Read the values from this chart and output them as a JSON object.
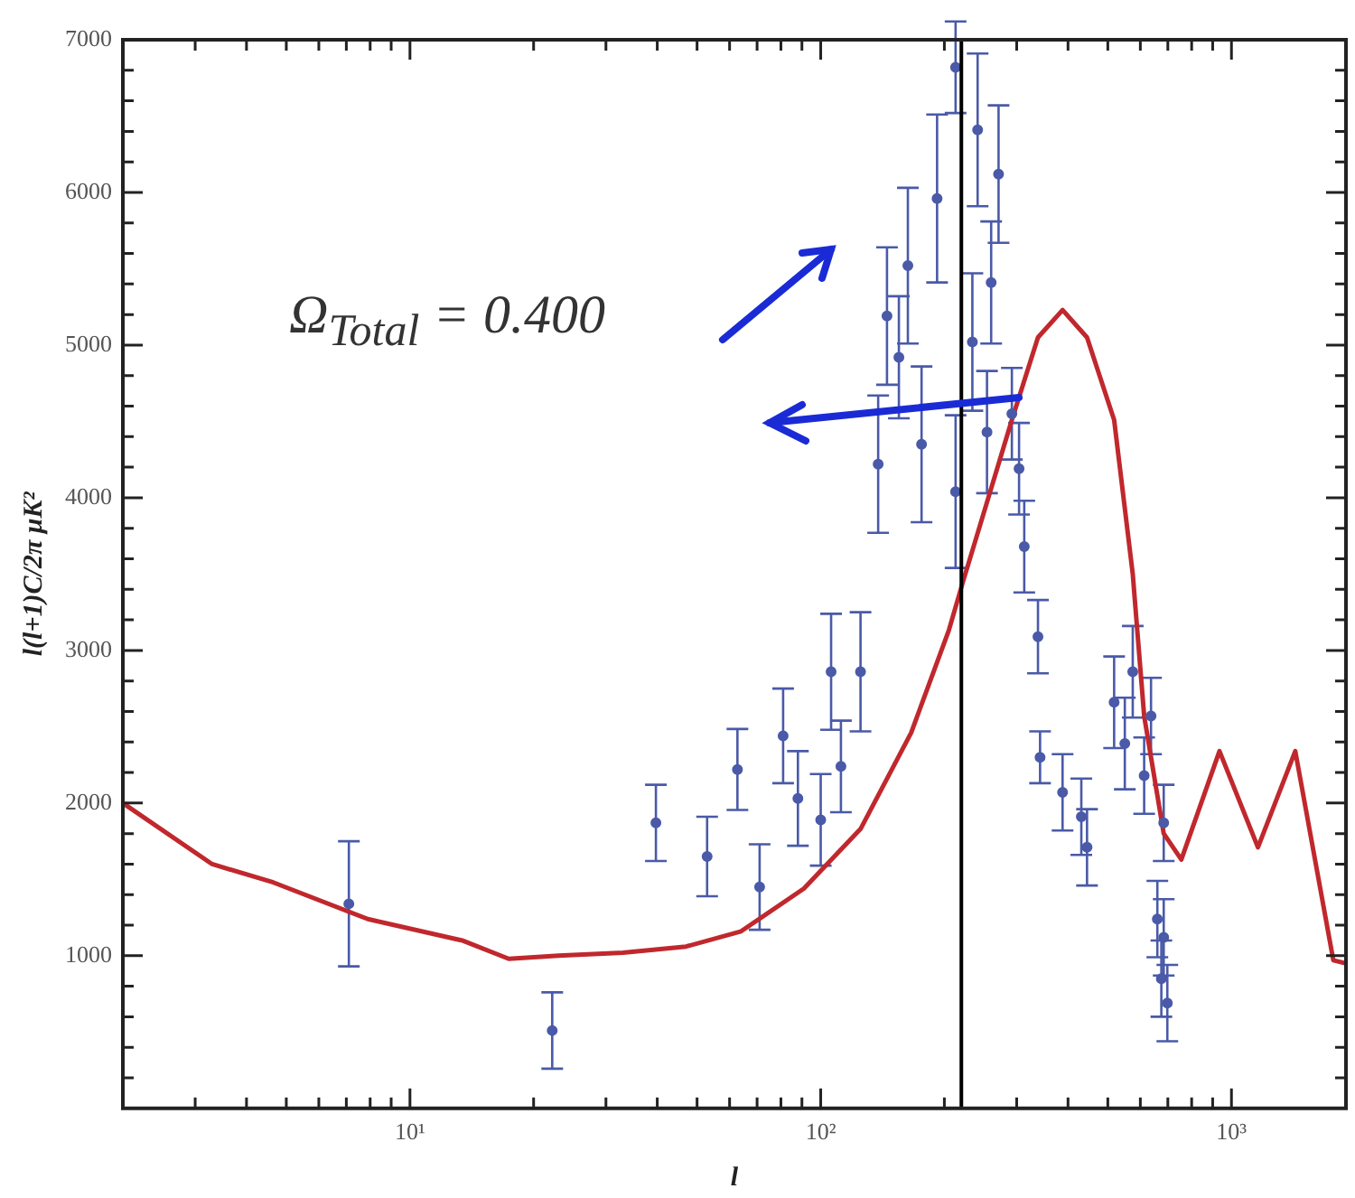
{
  "chart_data": {
    "type": "scatter",
    "xlabel": "l",
    "ylabel": "l(l+1)C/2π μK²",
    "annotations": [
      "Ω$_{Total}$ = 0.400"
    ],
    "log": "x",
    "grid": false,
    "legend": false,
    "xlim": [
      2,
      1900
    ],
    "xticks": [
      {
        "value": 3,
        "label": null
      },
      {
        "value": 4,
        "label": null
      },
      {
        "value": 5,
        "label": null
      },
      {
        "value": 6,
        "label": null
      },
      {
        "value": 7,
        "label": null
      },
      {
        "value": 8,
        "label": null
      },
      {
        "value": 9,
        "label": null
      },
      {
        "value": 10,
        "label": "10¹"
      },
      {
        "value": 20,
        "label": null
      },
      {
        "value": 30,
        "label": null
      },
      {
        "value": 40,
        "label": null
      },
      {
        "value": 50,
        "label": null
      },
      {
        "value": 60,
        "label": null
      },
      {
        "value": 70,
        "label": null
      },
      {
        "value": 80,
        "label": null
      },
      {
        "value": 90,
        "label": null
      },
      {
        "value": 100,
        "label": "10²"
      },
      {
        "value": 200,
        "label": null
      },
      {
        "value": 300,
        "label": null
      },
      {
        "value": 400,
        "label": null
      },
      {
        "value": 500,
        "label": null
      },
      {
        "value": 600,
        "label": null
      },
      {
        "value": 700,
        "label": null
      },
      {
        "value": 800,
        "label": null
      },
      {
        "value": 900,
        "label": null
      },
      {
        "value": 1000,
        "label": "10³"
      }
    ],
    "ylim": [
      0,
      7000
    ],
    "yticks": [
      {
        "value": 200,
        "label": null
      },
      {
        "value": 400,
        "label": null
      },
      {
        "value": 600,
        "label": null
      },
      {
        "value": 800,
        "label": null
      },
      1000,
      {
        "value": 1200,
        "label": null
      },
      {
        "value": 1400,
        "label": null
      },
      {
        "value": 1600,
        "label": null
      },
      {
        "value": 1800,
        "label": null
      },
      2000,
      {
        "value": 2200,
        "label": null
      },
      {
        "value": 2400,
        "label": null
      },
      {
        "value": 2600,
        "label": null
      },
      {
        "value": 2800,
        "label": null
      },
      3000,
      {
        "value": 3200,
        "label": null
      },
      {
        "value": 3400,
        "label": null
      },
      {
        "value": 3600,
        "label": null
      },
      {
        "value": 3800,
        "label": null
      },
      4000,
      {
        "value": 4200,
        "label": null
      },
      {
        "value": 4400,
        "label": null
      },
      {
        "value": 4600,
        "label": null
      },
      {
        "value": 4800,
        "label": null
      },
      5000,
      {
        "value": 5200,
        "label": null
      },
      {
        "value": 5400,
        "label": null
      },
      {
        "value": 5600,
        "label": null
      },
      {
        "value": 5800,
        "label": null
      },
      6000,
      {
        "value": 6200,
        "label": null
      },
      {
        "value": 6400,
        "label": null
      },
      {
        "value": 6600,
        "label": null
      },
      {
        "value": 6800,
        "label": null
      },
      7000
    ],
    "ref_lines": [
      {
        "axis": "x",
        "value": 220,
        "color": "#000000"
      }
    ],
    "series": [
      {
        "type": "line",
        "color": "#c0282d",
        "marker": "none",
        "x": [
          2,
          3.3,
          4.65,
          7.9,
          13.4,
          17.4,
          23,
          33,
          47,
          64,
          91,
          125,
          166,
          205,
          222,
          292,
          338,
          388,
          445,
          518,
          575,
          613,
          684,
          755,
          935,
          1160,
          1430,
          1770,
          1900
        ],
        "values": [
          2000,
          1600,
          1480,
          1240,
          1100,
          980,
          1000,
          1020,
          1060,
          1160,
          1440,
          1830,
          2460,
          3130,
          3450,
          4510,
          5050,
          5230,
          5050,
          4510,
          3500,
          2570,
          1800,
          1630,
          2340,
          1710,
          2340,
          970,
          950
        ]
      },
      {
        "color": "#4a5aa8",
        "marker": "circle",
        "x": [
          7.1,
          22.2,
          39.7,
          52.9,
          62.7,
          71,
          81,
          88,
          100,
          106,
          112,
          125,
          138,
          145,
          155,
          163,
          176,
          192,
          213,
          213,
          234,
          241,
          254,
          260,
          271,
          292,
          304,
          313,
          338,
          342,
          388,
          431,
          445,
          518,
          550,
          575,
          613,
          637,
          660,
          675,
          684,
          684,
          698
        ],
        "values": [
          1340,
          510,
          1870,
          1650,
          2220,
          1450,
          2440,
          2030,
          1890,
          2860,
          2240,
          2860,
          4220,
          5190,
          4920,
          5520,
          4350,
          5960,
          6820,
          4040,
          5020,
          6410,
          4430,
          5410,
          6120,
          4550,
          4190,
          3680,
          3090,
          2300,
          2070,
          1910,
          1710,
          2660,
          2390,
          2860,
          2180,
          2570,
          1240,
          850,
          1870,
          1120,
          690
        ],
        "errors": [
          410,
          250,
          250,
          260,
          265,
          280,
          310,
          310,
          300,
          380,
          300,
          390,
          450,
          450,
          400,
          510,
          510,
          550,
          300,
          500,
          450,
          500,
          400,
          400,
          450,
          300,
          300,
          300,
          240,
          170,
          250,
          250,
          250,
          300,
          300,
          300,
          250,
          250,
          250,
          250,
          250,
          250,
          250
        ]
      }
    ]
  }
}
